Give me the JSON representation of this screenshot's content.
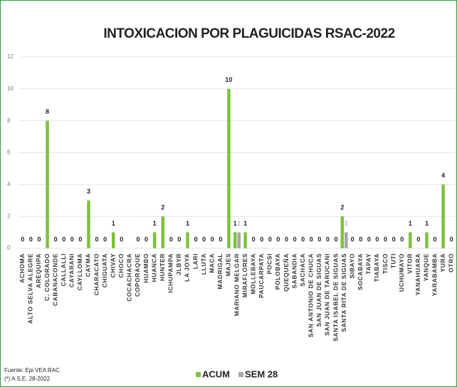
{
  "chart_data": {
    "type": "bar",
    "title": "INTOXICACION POR PLAGUICIDAS RSAC-2022",
    "categories": [
      "ACHOMA",
      "ALTO SELVA ALEGRE",
      "AREQUIPA",
      "C. COLORADO",
      "CABANACONDE",
      "CALLALLI",
      "CAYARANI",
      "CAYLLOMA",
      "CAYMA",
      "CHARACATO",
      "CHIGUATA",
      "CHIVAY",
      "CHOCO",
      "COCACHACRA",
      "COPORAQUE",
      "HUAMBO",
      "HUANCA",
      "HUNTER",
      "ICHUPAMPA",
      "JLBYR",
      "LA JOYA",
      "LARI",
      "LLUTA",
      "MACA",
      "MADRIGAL",
      "MAJES",
      "MARIANO MELGAR",
      "MIRAFLORES",
      "MOLLEBAYA",
      "PAUCARPATA",
      "POCSI",
      "POLOBAYA",
      "QUEQUEÑA",
      "SABANDIA",
      "SACHACA",
      "SAN ANTONIO DE CHUCA",
      "SAN JUAN DE SIGUAS",
      "SAN JUAN DE TARUCANI",
      "SANTA ISABEL DE SIGUAS",
      "SANTA RITA DE SIGUAS",
      "SIBAYO",
      "SOCABAYA",
      "TAPAY",
      "TIABAYA",
      "TISCO",
      "TUTI",
      "UCHUMAYO",
      "VITOR",
      "YANAHUARA",
      "YANQUE",
      "YARABAMBA",
      "YURA",
      "OTRO"
    ],
    "series": [
      {
        "name": "ACUM",
        "color": "#7cc23a",
        "values": [
          0,
          0,
          0,
          8,
          0,
          0,
          0,
          0,
          3,
          0,
          0,
          1,
          0,
          null,
          0,
          0,
          1,
          2,
          0,
          0,
          1,
          0,
          0,
          0,
          0,
          10,
          1,
          1,
          0,
          0,
          0,
          0,
          0,
          0,
          0,
          0,
          0,
          0,
          0,
          2,
          0,
          0,
          0,
          0,
          0,
          0,
          0,
          1,
          0,
          1,
          0,
          4,
          0
        ]
      },
      {
        "name": "SEM 28",
        "color": "#a6a6a6",
        "values": [
          null,
          null,
          null,
          null,
          null,
          null,
          null,
          null,
          null,
          null,
          null,
          null,
          null,
          null,
          null,
          null,
          null,
          null,
          null,
          null,
          null,
          null,
          null,
          null,
          null,
          null,
          1,
          null,
          null,
          null,
          null,
          null,
          null,
          null,
          null,
          null,
          null,
          null,
          null,
          1,
          null,
          null,
          null,
          null,
          null,
          null,
          null,
          null,
          null,
          null,
          null,
          null,
          null
        ]
      }
    ],
    "ylim": [
      0,
      12
    ],
    "yticks": [
      0,
      2,
      4,
      6,
      8,
      10,
      12
    ],
    "grid": true,
    "notes": [
      "Fuente: Epi VEA RAC",
      "(*) A S.E. 28-2022"
    ]
  }
}
